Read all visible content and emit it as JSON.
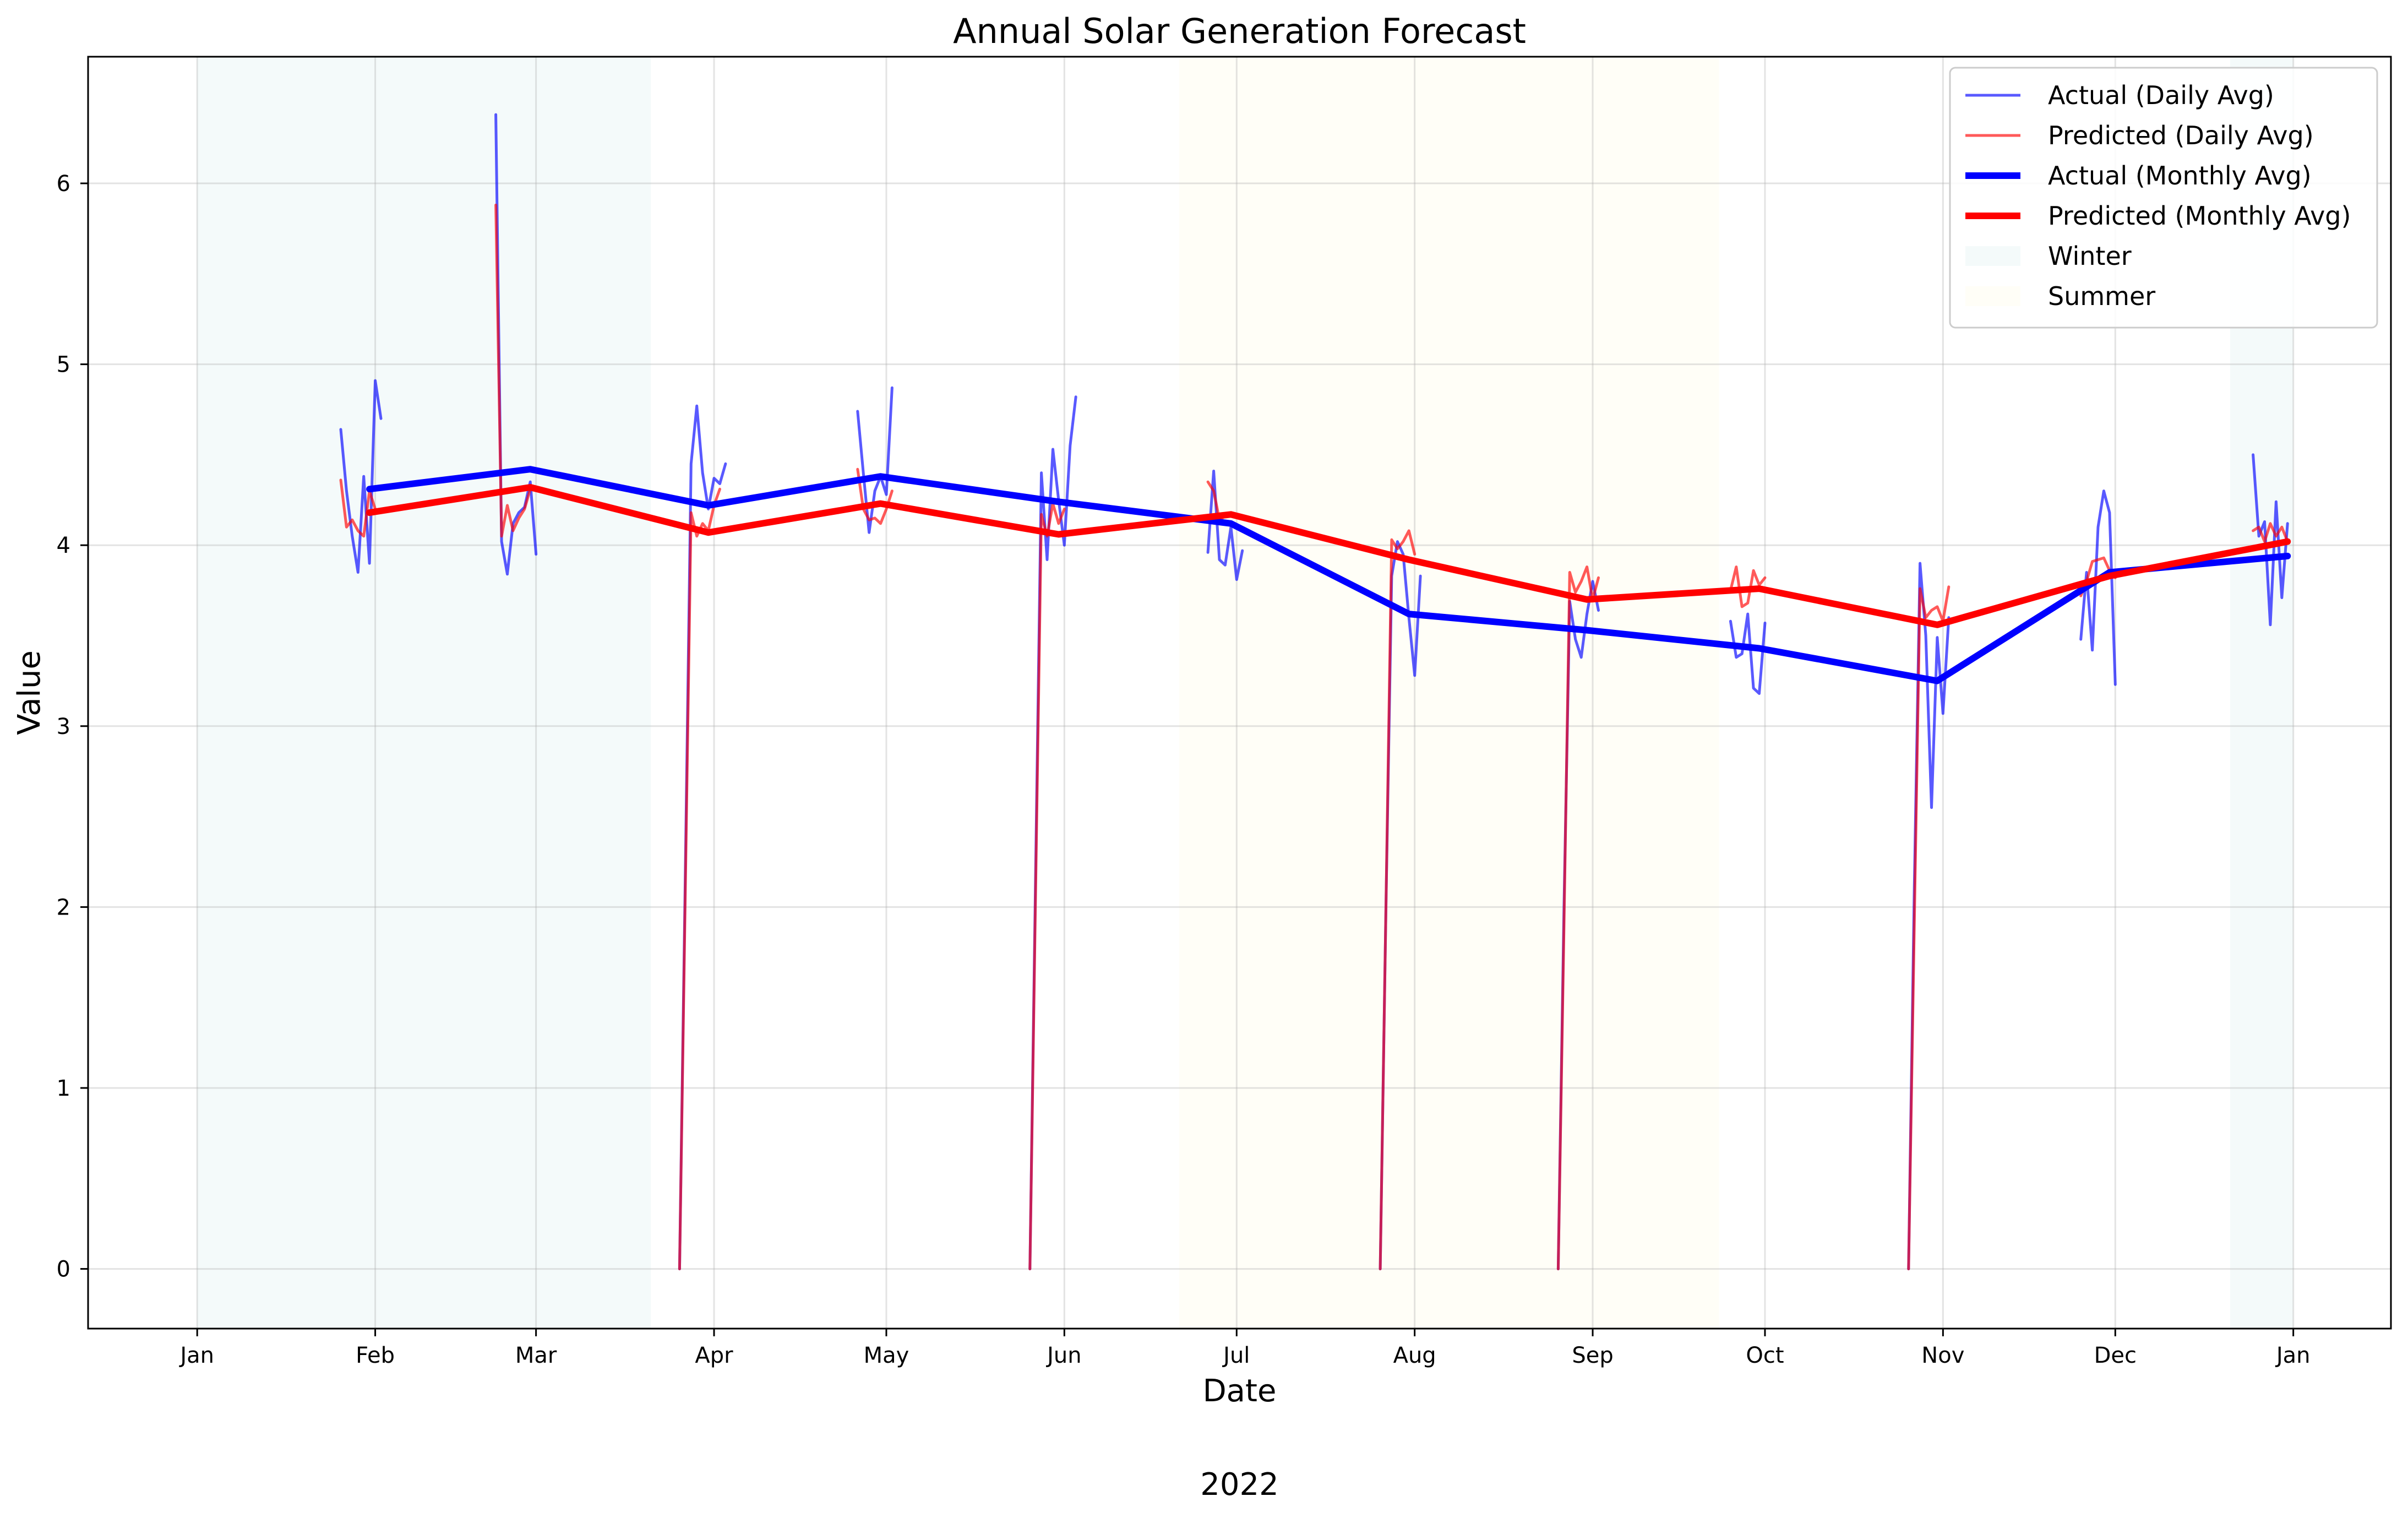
{
  "chart_data": {
    "type": "line",
    "title": "Annual Solar Generation Forecast",
    "xlabel": "Date",
    "ylabel": "Value",
    "year_label": "2022",
    "x_domain": [
      "2022-01-01",
      "2023-01-01"
    ],
    "xlim": [
      "2021-12-13",
      "2023-01-18"
    ],
    "ylim": [
      -0.33,
      6.7
    ],
    "yticks": [
      0,
      1,
      2,
      3,
      4,
      5,
      6
    ],
    "xticks": [
      {
        "date": "2022-01-01",
        "label": "Jan"
      },
      {
        "date": "2022-02-01",
        "label": "Feb"
      },
      {
        "date": "2022-03-01",
        "label": "Mar"
      },
      {
        "date": "2022-04-01",
        "label": "Apr"
      },
      {
        "date": "2022-05-01",
        "label": "May"
      },
      {
        "date": "2022-06-01",
        "label": "Jun"
      },
      {
        "date": "2022-07-01",
        "label": "Jul"
      },
      {
        "date": "2022-08-01",
        "label": "Aug"
      },
      {
        "date": "2022-09-01",
        "label": "Sep"
      },
      {
        "date": "2022-10-01",
        "label": "Oct"
      },
      {
        "date": "2022-11-01",
        "label": "Nov"
      },
      {
        "date": "2022-12-01",
        "label": "Dec"
      },
      {
        "date": "2023-01-01",
        "label": "Jan"
      }
    ],
    "grid": true,
    "legend_position": "top-right",
    "shaded_regions": [
      {
        "name": "Winter",
        "start": "2022-01-01",
        "end": "2022-03-21",
        "color": "#e0f2f1"
      },
      {
        "name": "Winter",
        "start": "2022-12-21",
        "end": "2023-01-01",
        "color": "#e0f2f1"
      },
      {
        "name": "Summer",
        "start": "2022-06-21",
        "end": "2022-09-23",
        "color": "#fffde7"
      }
    ],
    "series": [
      {
        "name": "Actual (Daily Avg)",
        "color": "#0000ff",
        "opacity": 0.65,
        "width": 5,
        "segments": [
          [
            [
              "2022-01-26",
              4.64
            ],
            [
              "2022-01-27",
              4.3
            ],
            [
              "2022-01-28",
              4.05
            ],
            [
              "2022-01-29",
              3.85
            ],
            [
              "2022-01-30",
              4.38
            ],
            [
              "2022-01-31",
              3.9
            ],
            [
              "2022-02-01",
              4.91
            ],
            [
              "2022-02-02",
              4.7
            ]
          ],
          [
            [
              "2022-02-22",
              6.38
            ],
            [
              "2022-02-23",
              4.02
            ],
            [
              "2022-02-24",
              3.84
            ],
            [
              "2022-02-25",
              4.12
            ],
            [
              "2022-02-26",
              4.18
            ],
            [
              "2022-02-27",
              4.21
            ],
            [
              "2022-02-28",
              4.35
            ],
            [
              "2022-03-01",
              3.95
            ]
          ],
          [
            [
              "2022-03-26",
              0.0
            ],
            [
              "2022-03-27",
              2.2
            ],
            [
              "2022-03-28",
              4.45
            ],
            [
              "2022-03-29",
              4.77
            ],
            [
              "2022-03-30",
              4.4
            ],
            [
              "2022-03-31",
              4.2
            ],
            [
              "2022-04-01",
              4.37
            ],
            [
              "2022-04-02",
              4.34
            ],
            [
              "2022-04-03",
              4.45
            ]
          ],
          [
            [
              "2022-04-26",
              4.74
            ],
            [
              "2022-04-27",
              4.4
            ],
            [
              "2022-04-28",
              4.07
            ],
            [
              "2022-04-29",
              4.3
            ],
            [
              "2022-04-30",
              4.38
            ],
            [
              "2022-05-01",
              4.28
            ],
            [
              "2022-05-02",
              4.87
            ]
          ],
          [
            [
              "2022-05-26",
              0.0
            ],
            [
              "2022-05-27",
              2.2
            ],
            [
              "2022-05-28",
              4.4
            ],
            [
              "2022-05-29",
              3.92
            ],
            [
              "2022-05-30",
              4.53
            ],
            [
              "2022-05-31",
              4.25
            ],
            [
              "2022-06-01",
              4.0
            ],
            [
              "2022-06-02",
              4.55
            ],
            [
              "2022-06-03",
              4.82
            ]
          ],
          [
            [
              "2022-06-26",
              3.96
            ],
            [
              "2022-06-27",
              4.41
            ],
            [
              "2022-06-28",
              3.92
            ],
            [
              "2022-06-29",
              3.89
            ],
            [
              "2022-06-30",
              4.1
            ],
            [
              "2022-07-01",
              3.81
            ],
            [
              "2022-07-02",
              3.97
            ]
          ],
          [
            [
              "2022-07-26",
              0.0
            ],
            [
              "2022-07-27",
              2.0
            ],
            [
              "2022-07-28",
              3.83
            ],
            [
              "2022-07-29",
              4.02
            ],
            [
              "2022-07-30",
              3.95
            ],
            [
              "2022-07-31",
              3.6
            ],
            [
              "2022-08-01",
              3.28
            ],
            [
              "2022-08-02",
              3.83
            ]
          ],
          [
            [
              "2022-08-26",
              0.0
            ],
            [
              "2022-08-27",
              2.0
            ],
            [
              "2022-08-28",
              3.69
            ],
            [
              "2022-08-29",
              3.48
            ],
            [
              "2022-08-30",
              3.38
            ],
            [
              "2022-08-31",
              3.62
            ],
            [
              "2022-09-01",
              3.8
            ],
            [
              "2022-09-02",
              3.64
            ]
          ],
          [
            [
              "2022-09-25",
              3.58
            ],
            [
              "2022-09-26",
              3.38
            ],
            [
              "2022-09-27",
              3.4
            ],
            [
              "2022-09-28",
              3.62
            ],
            [
              "2022-09-29",
              3.21
            ],
            [
              "2022-09-30",
              3.18
            ],
            [
              "2022-10-01",
              3.57
            ]
          ],
          [
            [
              "2022-10-26",
              0.0
            ],
            [
              "2022-10-27",
              2.1
            ],
            [
              "2022-10-28",
              3.9
            ],
            [
              "2022-10-29",
              3.5
            ],
            [
              "2022-10-30",
              2.55
            ],
            [
              "2022-10-31",
              3.49
            ],
            [
              "2022-11-01",
              3.07
            ],
            [
              "2022-11-02",
              3.6
            ]
          ],
          [
            [
              "2022-11-25",
              3.48
            ],
            [
              "2022-11-26",
              3.85
            ],
            [
              "2022-11-27",
              3.42
            ],
            [
              "2022-11-28",
              4.1
            ],
            [
              "2022-11-29",
              4.3
            ],
            [
              "2022-11-30",
              4.18
            ],
            [
              "2022-12-01",
              3.23
            ]
          ],
          [
            [
              "2022-12-25",
              4.5
            ],
            [
              "2022-12-26",
              4.05
            ],
            [
              "2022-12-27",
              4.13
            ],
            [
              "2022-12-28",
              3.56
            ],
            [
              "2022-12-29",
              4.24
            ],
            [
              "2022-12-30",
              3.71
            ],
            [
              "2022-12-31",
              4.12
            ]
          ]
        ]
      },
      {
        "name": "Predicted (Daily Avg)",
        "color": "#ff0000",
        "opacity": 0.65,
        "width": 5,
        "segments": [
          [
            [
              "2022-01-26",
              4.36
            ],
            [
              "2022-01-27",
              4.1
            ],
            [
              "2022-01-28",
              4.14
            ],
            [
              "2022-01-29",
              4.08
            ],
            [
              "2022-01-30",
              4.05
            ],
            [
              "2022-01-31",
              4.3
            ],
            [
              "2022-02-01",
              4.2
            ]
          ],
          [
            [
              "2022-02-22",
              5.88
            ],
            [
              "2022-02-23",
              4.05
            ],
            [
              "2022-02-24",
              4.22
            ],
            [
              "2022-02-25",
              4.08
            ],
            [
              "2022-02-26",
              4.15
            ],
            [
              "2022-02-27",
              4.2
            ],
            [
              "2022-02-28",
              4.31
            ]
          ],
          [
            [
              "2022-03-26",
              0.0
            ],
            [
              "2022-03-27",
              2.1
            ],
            [
              "2022-03-28",
              4.18
            ],
            [
              "2022-03-29",
              4.05
            ],
            [
              "2022-03-30",
              4.12
            ],
            [
              "2022-03-31",
              4.08
            ],
            [
              "2022-04-01",
              4.22
            ],
            [
              "2022-04-02",
              4.31
            ]
          ],
          [
            [
              "2022-04-26",
              4.42
            ],
            [
              "2022-04-27",
              4.2
            ],
            [
              "2022-04-28",
              4.14
            ],
            [
              "2022-04-29",
              4.15
            ],
            [
              "2022-04-30",
              4.12
            ],
            [
              "2022-05-01",
              4.2
            ],
            [
              "2022-05-02",
              4.3
            ]
          ],
          [
            [
              "2022-05-26",
              0.0
            ],
            [
              "2022-05-27",
              2.1
            ],
            [
              "2022-05-28",
              4.17
            ],
            [
              "2022-05-29",
              4.05
            ],
            [
              "2022-05-30",
              4.23
            ],
            [
              "2022-05-31",
              4.12
            ],
            [
              "2022-06-01",
              4.2
            ]
          ],
          [
            [
              "2022-06-26",
              4.35
            ],
            [
              "2022-06-27",
              4.3
            ],
            [
              "2022-06-28",
              4.14
            ],
            [
              "2022-06-29",
              4.16
            ],
            [
              "2022-06-30",
              4.18
            ]
          ],
          [
            [
              "2022-07-26",
              0.0
            ],
            [
              "2022-07-27",
              2.0
            ],
            [
              "2022-07-28",
              4.03
            ],
            [
              "2022-07-29",
              3.98
            ],
            [
              "2022-07-30",
              4.02
            ],
            [
              "2022-07-31",
              4.08
            ],
            [
              "2022-08-01",
              3.95
            ]
          ],
          [
            [
              "2022-08-26",
              0.0
            ],
            [
              "2022-08-27",
              1.9
            ],
            [
              "2022-08-28",
              3.85
            ],
            [
              "2022-08-29",
              3.74
            ],
            [
              "2022-08-30",
              3.8
            ],
            [
              "2022-08-31",
              3.88
            ],
            [
              "2022-09-01",
              3.7
            ],
            [
              "2022-09-02",
              3.82
            ]
          ],
          [
            [
              "2022-09-25",
              3.75
            ],
            [
              "2022-09-26",
              3.88
            ],
            [
              "2022-09-27",
              3.66
            ],
            [
              "2022-09-28",
              3.68
            ],
            [
              "2022-09-29",
              3.86
            ],
            [
              "2022-09-30",
              3.78
            ],
            [
              "2022-10-01",
              3.82
            ]
          ],
          [
            [
              "2022-10-26",
              0.0
            ],
            [
              "2022-10-27",
              1.9
            ],
            [
              "2022-10-28",
              3.76
            ],
            [
              "2022-10-29",
              3.6
            ],
            [
              "2022-10-30",
              3.64
            ],
            [
              "2022-10-31",
              3.66
            ],
            [
              "2022-11-01",
              3.58
            ],
            [
              "2022-11-02",
              3.77
            ]
          ],
          [
            [
              "2022-11-25",
              3.72
            ],
            [
              "2022-11-26",
              3.8
            ],
            [
              "2022-11-27",
              3.91
            ],
            [
              "2022-11-28",
              3.92
            ],
            [
              "2022-11-29",
              3.93
            ],
            [
              "2022-11-30",
              3.86
            ],
            [
              "2022-12-01",
              3.82
            ]
          ],
          [
            [
              "2022-12-25",
              4.08
            ],
            [
              "2022-12-26",
              4.1
            ],
            [
              "2022-12-27",
              4.02
            ],
            [
              "2022-12-28",
              4.12
            ],
            [
              "2022-12-29",
              4.05
            ],
            [
              "2022-12-30",
              4.1
            ],
            [
              "2022-12-31",
              4.02
            ]
          ]
        ]
      },
      {
        "name": "Actual (Monthly Avg)",
        "color": "#0000ff",
        "opacity": 1,
        "width": 12,
        "points": [
          [
            "2022-01-31",
            4.31
          ],
          [
            "2022-02-28",
            4.42
          ],
          [
            "2022-03-31",
            4.22
          ],
          [
            "2022-04-30",
            4.38
          ],
          [
            "2022-05-31",
            4.24
          ],
          [
            "2022-06-30",
            4.12
          ],
          [
            "2022-07-31",
            3.62
          ],
          [
            "2022-08-31",
            3.53
          ],
          [
            "2022-09-30",
            3.43
          ],
          [
            "2022-10-31",
            3.25
          ],
          [
            "2022-11-30",
            3.85
          ],
          [
            "2022-12-31",
            3.94
          ]
        ]
      },
      {
        "name": "Predicted (Monthly Avg)",
        "color": "#ff0000",
        "opacity": 1,
        "width": 12,
        "points": [
          [
            "2022-01-31",
            4.18
          ],
          [
            "2022-02-28",
            4.32
          ],
          [
            "2022-03-31",
            4.07
          ],
          [
            "2022-04-30",
            4.23
          ],
          [
            "2022-05-31",
            4.06
          ],
          [
            "2022-06-30",
            4.17
          ],
          [
            "2022-07-31",
            3.92
          ],
          [
            "2022-08-31",
            3.7
          ],
          [
            "2022-09-30",
            3.76
          ],
          [
            "2022-10-31",
            3.56
          ],
          [
            "2022-11-30",
            3.83
          ],
          [
            "2022-12-31",
            4.02
          ]
        ]
      }
    ],
    "legend": [
      {
        "label": "Actual (Daily Avg)",
        "kind": "line",
        "color": "#0000ff",
        "opacity": 0.65,
        "width": 5
      },
      {
        "label": "Predicted (Daily Avg)",
        "kind": "line",
        "color": "#ff0000",
        "opacity": 0.65,
        "width": 5
      },
      {
        "label": "Actual (Monthly Avg)",
        "kind": "line",
        "color": "#0000ff",
        "opacity": 1,
        "width": 12
      },
      {
        "label": "Predicted (Monthly Avg)",
        "kind": "line",
        "color": "#ff0000",
        "opacity": 1,
        "width": 12
      },
      {
        "label": "Winter",
        "kind": "patch",
        "color": "#e0f2f1"
      },
      {
        "label": "Summer",
        "kind": "patch",
        "color": "#fffde7"
      }
    ]
  }
}
